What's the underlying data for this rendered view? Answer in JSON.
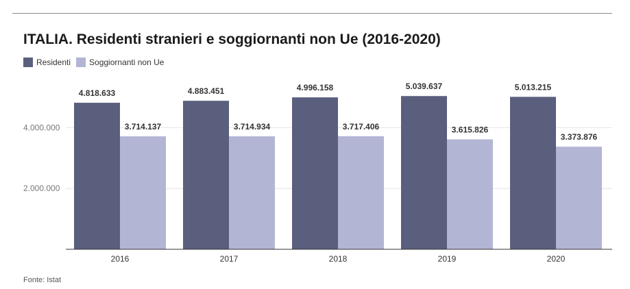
{
  "title": "ITALIA. Residenti stranieri e soggiornanti non Ue (2016-2020)",
  "source": "Fonte: Istat",
  "chart_data": {
    "type": "bar",
    "title": "ITALIA. Residenti stranieri e soggiornanti non Ue (2016-2020)",
    "categories": [
      "2016",
      "2017",
      "2018",
      "2019",
      "2020"
    ],
    "series": [
      {
        "name": "Residenti",
        "color": "#5b5f7e",
        "values": [
          4818633,
          4883451,
          4996158,
          5039637,
          5013215
        ],
        "labels": [
          "4.818.633",
          "4.883.451",
          "4.996.158",
          "5.039.637",
          "5.013.215"
        ]
      },
      {
        "name": "Soggiornanti non Ue",
        "color": "#b3b5d5",
        "values": [
          3714137,
          3714934,
          3717406,
          3615826,
          3373876
        ],
        "labels": [
          "3.714.137",
          "3.714.934",
          "3.717.406",
          "3.615.826",
          "3.373.876"
        ]
      }
    ],
    "ylim": [
      0,
      5400000
    ],
    "yticks": [
      2000000,
      4000000
    ],
    "ytick_labels": [
      "2.000.000",
      "4.000.000"
    ],
    "grid": true,
    "legend": "top-left",
    "xlabel": "",
    "ylabel": ""
  }
}
